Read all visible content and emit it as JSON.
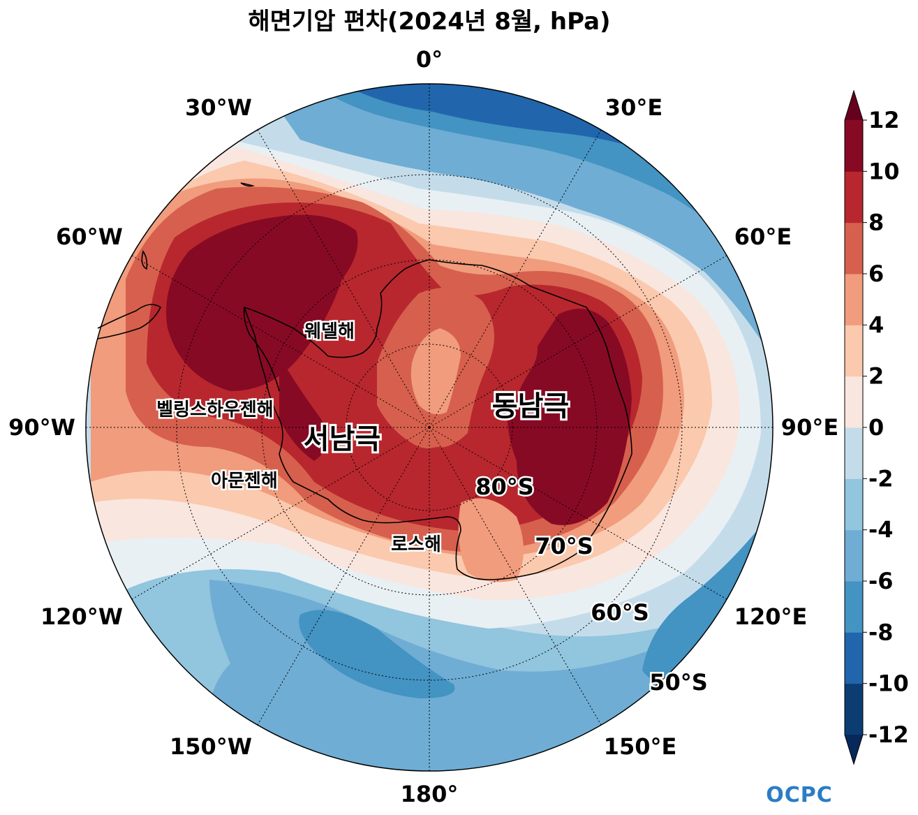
{
  "title": "해면기압 편차(2024년 8월, hPa)",
  "longitude_labels": [
    "0°",
    "30°E",
    "60°E",
    "90°E",
    "120°E",
    "150°E",
    "180°",
    "150°W",
    "120°W",
    "90°W",
    "60°W",
    "30°W"
  ],
  "latitude_labels": [
    "80°S",
    "70°S",
    "60°S",
    "50°S"
  ],
  "regions": {
    "west_antarctica": "서남극",
    "east_antarctica": "동남극"
  },
  "seas": {
    "weddell": "웨델해",
    "bellingshausen": "벨링스하우젠해",
    "amundsen": "아문젠해",
    "ross": "로스해"
  },
  "colorbar": {
    "ticks": [
      "12",
      "10",
      "8",
      "6",
      "4",
      "2",
      "0",
      "-2",
      "-4",
      "-6",
      "-8",
      "-10",
      "-12"
    ],
    "levels": [
      -12,
      -10,
      -8,
      -6,
      -4,
      -2,
      0,
      2,
      4,
      6,
      8,
      10,
      12
    ],
    "colors": [
      "#0b3d73",
      "#2166ac",
      "#4393c3",
      "#6fadd4",
      "#92c5de",
      "#c4dcea",
      "#e8f0f4",
      "#f9e6df",
      "#fbc9ae",
      "#f09c7d",
      "#d6604d",
      "#b8272e",
      "#870a24"
    ],
    "extend_low": "#06285a",
    "extend_high": "#67001f"
  },
  "logo": "OCPC"
}
